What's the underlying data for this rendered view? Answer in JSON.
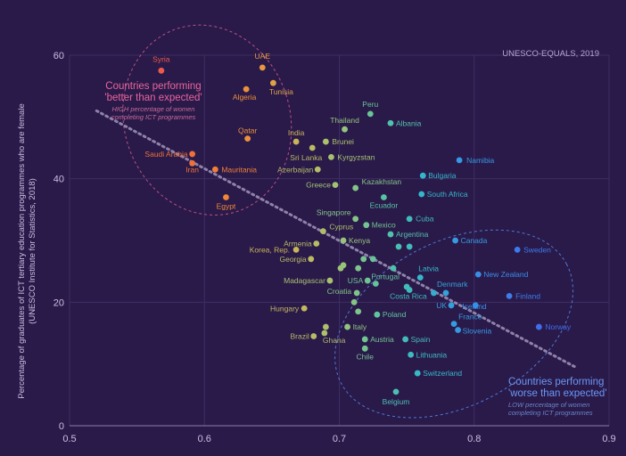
{
  "chart_data": {
    "type": "scatter",
    "source": "UNESCO-EQUALS, 2019",
    "ylabel_line1": "Percentage of graduates of ICT tertiary education programmes who are female",
    "ylabel_line2": "(UNESCO Institute for Statistics, 2018)",
    "xlim": [
      0.5,
      0.9
    ],
    "ylim": [
      0,
      60
    ],
    "x_ticks": [
      "0.5",
      "0.6",
      "0.7",
      "0.8",
      "0.9"
    ],
    "y_ticks": [
      "0",
      "20",
      "40",
      "60"
    ],
    "grid": true,
    "trend_line": {
      "x1": 0.52,
      "y1": 51,
      "x2": 0.875,
      "y2": 9.5
    },
    "annotations": {
      "better": {
        "title_line1": "Countries performing",
        "title_line2": "'better than expected'",
        "sub_line1": "HIGH percentage of women",
        "sub_line2": "completing ICT programmes",
        "color": "#e8649a"
      },
      "worse": {
        "title_line1": "Countries performing",
        "title_line2": "'worse than expected'",
        "sub_line1": "LOW percentage of women",
        "sub_line2": "completing ICT programmes",
        "color": "#5b8ff0"
      }
    },
    "points": [
      {
        "label": "Syria",
        "x": 0.568,
        "y": 57.5
      },
      {
        "label": "UAE",
        "x": 0.643,
        "y": 58.0
      },
      {
        "label": "Tunisia",
        "x": 0.651,
        "y": 55.5
      },
      {
        "label": "Algeria",
        "x": 0.631,
        "y": 54.5
      },
      {
        "label": "Qatar",
        "x": 0.632,
        "y": 46.5
      },
      {
        "label": "India",
        "x": 0.668,
        "y": 46.0
      },
      {
        "label": "Saudi Arabia",
        "x": 0.591,
        "y": 44.0
      },
      {
        "label": "Iran",
        "x": 0.591,
        "y": 42.5
      },
      {
        "label": "Mauritania",
        "x": 0.608,
        "y": 41.5
      },
      {
        "label": "Egypt",
        "x": 0.616,
        "y": 37.0
      },
      {
        "label": "Peru",
        "x": 0.723,
        "y": 50.5
      },
      {
        "label": "Albania",
        "x": 0.738,
        "y": 49.0
      },
      {
        "label": "Thailand",
        "x": 0.704,
        "y": 48.0
      },
      {
        "label": "Brunei",
        "x": 0.69,
        "y": 46.0
      },
      {
        "label": "Sri Lanka",
        "x": 0.68,
        "y": 45.0
      },
      {
        "label": "Kyrgyzstan",
        "x": 0.694,
        "y": 43.5
      },
      {
        "label": "Azerbaijan",
        "x": 0.684,
        "y": 41.5
      },
      {
        "label": "Namibia",
        "x": 0.789,
        "y": 43.0
      },
      {
        "label": "Bulgaria",
        "x": 0.762,
        "y": 40.5
      },
      {
        "label": "Kazakhstan",
        "x": 0.712,
        "y": 38.5
      },
      {
        "label": "Greece",
        "x": 0.697,
        "y": 39.0
      },
      {
        "label": "South Africa",
        "x": 0.761,
        "y": 37.5
      },
      {
        "label": "Ecuador",
        "x": 0.733,
        "y": 37.0
      },
      {
        "label": "Singapore",
        "x": 0.712,
        "y": 33.5
      },
      {
        "label": "Mexico",
        "x": 0.72,
        "y": 32.5
      },
      {
        "label": "Cuba",
        "x": 0.752,
        "y": 33.5
      },
      {
        "label": "Cyprus",
        "x": 0.688,
        "y": 31.5
      },
      {
        "label": "Argentina",
        "x": 0.738,
        "y": 31.0
      },
      {
        "label": "Armenia",
        "x": 0.683,
        "y": 29.5
      },
      {
        "label": "Kenya",
        "x": 0.703,
        "y": 30.0
      },
      {
        "label": "Canada",
        "x": 0.786,
        "y": 30.0
      },
      {
        "label": "Korea, Rep.",
        "x": 0.668,
        "y": 28.5
      },
      {
        "label": "Sweden",
        "x": 0.832,
        "y": 28.5
      },
      {
        "label": "Georgia",
        "x": 0.679,
        "y": 27.0
      },
      {
        "label": "Latvia",
        "x": 0.76,
        "y": 24.0
      },
      {
        "label": "New Zealand",
        "x": 0.803,
        "y": 24.5
      },
      {
        "label": "Madagascar",
        "x": 0.693,
        "y": 23.5
      },
      {
        "label": "USA",
        "x": 0.721,
        "y": 23.5
      },
      {
        "label": "Portugal",
        "x": 0.727,
        "y": 23.0
      },
      {
        "label": "Croatia",
        "x": 0.713,
        "y": 21.5
      },
      {
        "label": "Costa Rica",
        "x": 0.752,
        "y": 22.0
      },
      {
        "label": "Denmark",
        "x": 0.779,
        "y": 21.5
      },
      {
        "label": "Finland",
        "x": 0.826,
        "y": 21.0
      },
      {
        "label": "UK",
        "x": 0.783,
        "y": 19.5
      },
      {
        "label": "Iceland",
        "x": 0.801,
        "y": 19.5
      },
      {
        "label": "Hungary",
        "x": 0.674,
        "y": 19.0
      },
      {
        "label": "Poland",
        "x": 0.728,
        "y": 18.0
      },
      {
        "label": "France",
        "x": 0.785,
        "y": 16.5
      },
      {
        "label": "Slovenia",
        "x": 0.788,
        "y": 15.5
      },
      {
        "label": "Norway",
        "x": 0.848,
        "y": 16.0
      },
      {
        "label": "Italy",
        "x": 0.706,
        "y": 16.0
      },
      {
        "label": "Brazil",
        "x": 0.681,
        "y": 14.5
      },
      {
        "label": "Ghana",
        "x": 0.689,
        "y": 15.0
      },
      {
        "label": "Austria",
        "x": 0.719,
        "y": 14.0
      },
      {
        "label": "Spain",
        "x": 0.749,
        "y": 14.0
      },
      {
        "label": "Chile",
        "x": 0.719,
        "y": 12.5
      },
      {
        "label": "Lithuania",
        "x": 0.753,
        "y": 11.5
      },
      {
        "label": "Switzerland",
        "x": 0.758,
        "y": 8.5
      },
      {
        "label": "Belgium",
        "x": 0.742,
        "y": 5.5
      },
      {
        "label": "",
        "x": 0.718,
        "y": 27.0
      },
      {
        "label": "",
        "x": 0.714,
        "y": 25.5
      },
      {
        "label": "",
        "x": 0.701,
        "y": 25.5
      },
      {
        "label": "",
        "x": 0.703,
        "y": 26.0
      },
      {
        "label": "",
        "x": 0.725,
        "y": 27.0
      },
      {
        "label": "",
        "x": 0.744,
        "y": 29.0
      },
      {
        "label": "",
        "x": 0.752,
        "y": 29.0
      },
      {
        "label": "",
        "x": 0.74,
        "y": 25.5
      },
      {
        "label": "",
        "x": 0.75,
        "y": 22.5
      },
      {
        "label": "",
        "x": 0.77,
        "y": 21.5
      },
      {
        "label": "",
        "x": 0.714,
        "y": 18.5
      },
      {
        "label": "",
        "x": 0.711,
        "y": 20.0
      },
      {
        "label": "",
        "x": 0.69,
        "y": 16.0
      }
    ]
  }
}
